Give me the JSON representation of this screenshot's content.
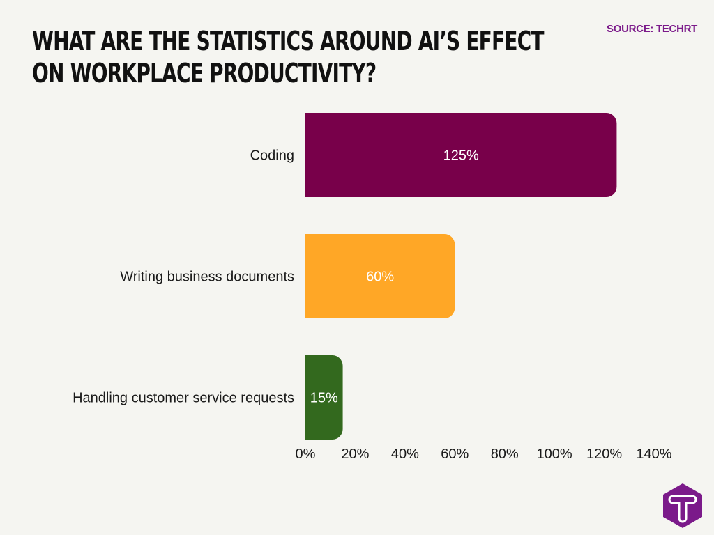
{
  "header": {
    "title_line1": "WHAT ARE THE STATISTICS AROUND AI’S EFFECT",
    "title_line2": "ON WORKPLACE PRODUCTIVITY?",
    "source": "SOURCE: TECHRT"
  },
  "logo": {
    "icon": "techrt-hexagon-t-logo",
    "color": "#7b1a8a",
    "text": "T"
  },
  "chart_data": {
    "type": "bar",
    "orientation": "horizontal",
    "title": "WHAT ARE THE STATISTICS AROUND AI’S EFFECT ON WORKPLACE PRODUCTIVITY?",
    "categories": [
      "Coding",
      "Writing business documents",
      "Handling customer service requests"
    ],
    "values": [
      125,
      60,
      15
    ],
    "data_labels": [
      "125%",
      "60%",
      "15%"
    ],
    "colors": [
      "#78004a",
      "#ffa726",
      "#33691e"
    ],
    "xlim": [
      0,
      140
    ],
    "xticks": [
      "0%",
      "20%",
      "40%",
      "60%",
      "80%",
      "100%",
      "120%",
      "140%"
    ],
    "xlabel": "",
    "ylabel": "",
    "grid": false
  }
}
